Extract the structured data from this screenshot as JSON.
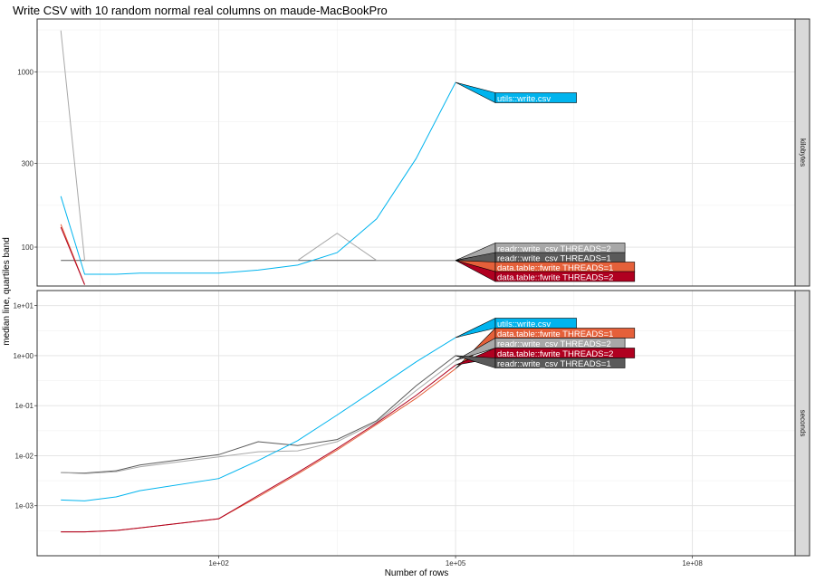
{
  "chart_data": {
    "type": "line",
    "title": "Write CSV with 10 random normal real columns on maude-MacBookPro",
    "xlabel": "Number of rows",
    "ylabel": "median line, quartiles band",
    "x_scale": "log10",
    "xlim": [
      0.5,
      2000000000
    ],
    "x_ticks": [
      {
        "value": 100,
        "label": "1e+02"
      },
      {
        "value": 100000,
        "label": "1e+05"
      },
      {
        "value": 100000000,
        "label": "1e+08"
      }
    ],
    "grid": true,
    "colors": {
      "utils::write.csv": "#00b4ee",
      "readr::write_csv THREADS=1": "#5a5a5a",
      "readr::write_csv THREADS=2": "#a8a8a8",
      "data.table::fwrite THREADS=1": "#e5603a",
      "data.table::fwrite THREADS=2": "#b00020"
    },
    "panels": [
      {
        "strip": "kilobytes",
        "y_scale": "log10",
        "ylim": [
          60,
          2000
        ],
        "y_ticks": [
          {
            "value": 100,
            "label": "100"
          },
          {
            "value": 300,
            "label": "300"
          },
          {
            "value": 1000,
            "label": "1000"
          }
        ],
        "series": [
          {
            "name": "readr::write_csv THREADS=1",
            "x": [
              1,
              2,
              5,
              10,
              100,
              316,
              1000,
              3162,
              10000,
              31623,
              100000
            ],
            "y": [
              84,
              84,
              84,
              84,
              84,
              84,
              84,
              84,
              84,
              84,
              84
            ]
          },
          {
            "name": "readr::write_csv THREADS=2",
            "x": [
              1,
              2,
              5,
              10,
              100,
              316,
              1000,
              3162,
              10000,
              31623,
              100000
            ],
            "y": [
              1720,
              84,
              84,
              84,
              84,
              84,
              84,
              120,
              84,
              84,
              84
            ]
          },
          {
            "name": "utils::write.csv",
            "x": [
              1,
              2,
              5,
              10,
              100,
              316,
              1000,
              3162,
              10000,
              31623,
              100000
            ],
            "y": [
              195,
              70,
              70,
              71,
              71,
              74,
              79,
              93,
              145,
              320,
              870
            ]
          },
          {
            "name": "data.table::fwrite THREADS=1",
            "x": [
              1,
              2
            ],
            "y": [
              135,
              61
            ]
          },
          {
            "name": "data.table::fwrite THREADS=2",
            "x": [
              1,
              2
            ],
            "y": [
              130,
              61
            ]
          }
        ],
        "labels": [
          {
            "text": "utils::write.csv",
            "series": "utils::write.csv",
            "x": 100000,
            "y": 870
          },
          {
            "text": "readr::write_csv THREADS=2",
            "series": "readr::write_csv THREADS=2",
            "x": 100000,
            "y": 84
          },
          {
            "text": "readr::write_csv THREADS=1",
            "series": "readr::write_csv THREADS=1",
            "x": 100000,
            "y": 84
          },
          {
            "text": "data.table::fwrite THREADS=1",
            "series": "data.table::fwrite THREADS=1",
            "x": 100000,
            "y": 84
          },
          {
            "text": "data.table::fwrite THREADS=2",
            "series": "data.table::fwrite THREADS=2",
            "x": 100000,
            "y": 84
          }
        ]
      },
      {
        "strip": "seconds",
        "y_scale": "log10",
        "ylim": [
          0.0001,
          20
        ],
        "y_ticks": [
          {
            "value": 0.001,
            "label": "1e-03"
          },
          {
            "value": 0.01,
            "label": "1e-02"
          },
          {
            "value": 0.1,
            "label": "1e-01"
          },
          {
            "value": 1,
            "label": "1e+00"
          },
          {
            "value": 10,
            "label": "1e+01"
          }
        ],
        "series": [
          {
            "name": "readr::write_csv THREADS=1",
            "x": [
              1,
              2,
              5,
              10,
              100,
              316,
              1000,
              3162,
              10000,
              31623,
              100000
            ],
            "y": [
              0.0046,
              0.0045,
              0.005,
              0.0065,
              0.0105,
              0.019,
              0.016,
              0.021,
              0.05,
              0.25,
              1.0
            ]
          },
          {
            "name": "readr::write_csv THREADS=2",
            "x": [
              1,
              2,
              5,
              10,
              100,
              316,
              1000,
              3162,
              10000,
              31623,
              100000
            ],
            "y": [
              0.0046,
              0.0044,
              0.0048,
              0.006,
              0.0095,
              0.012,
              0.0125,
              0.019,
              0.047,
              0.2,
              0.8
            ]
          },
          {
            "name": "utils::write.csv",
            "x": [
              1,
              2,
              5,
              10,
              100,
              316,
              1000,
              3162,
              10000,
              31623,
              100000
            ],
            "y": [
              0.0013,
              0.00125,
              0.0015,
              0.002,
              0.0035,
              0.008,
              0.02,
              0.065,
              0.22,
              0.75,
              2.3
            ]
          },
          {
            "name": "data.table::fwrite THREADS=1",
            "x": [
              1,
              2,
              5,
              10,
              100,
              316,
              1000,
              3162,
              10000,
              31623,
              100000
            ],
            "y": [
              0.0003,
              0.0003,
              0.00032,
              0.00036,
              0.00055,
              0.0015,
              0.0043,
              0.013,
              0.042,
              0.14,
              0.55
            ]
          },
          {
            "name": "data.table::fwrite THREADS=2",
            "x": [
              1,
              2,
              5,
              10,
              100,
              316,
              1000,
              3162,
              10000,
              31623,
              100000
            ],
            "y": [
              0.0003,
              0.0003,
              0.00032,
              0.00036,
              0.00055,
              0.0016,
              0.0046,
              0.014,
              0.045,
              0.16,
              0.65
            ]
          }
        ],
        "labels": [
          {
            "text": "utils::write.csv",
            "series": "utils::write.csv",
            "x": 100000,
            "y": 2.3
          },
          {
            "text": "data.table::fwrite THREADS=1",
            "series": "data.table::fwrite THREADS=1",
            "x": 100000,
            "y": 0.55
          },
          {
            "text": "readr::write_csv THREADS=2",
            "series": "readr::write_csv THREADS=2",
            "x": 100000,
            "y": 0.8
          },
          {
            "text": "data.table::fwrite THREADS=2",
            "series": "data.table::fwrite THREADS=2",
            "x": 100000,
            "y": 0.65
          },
          {
            "text": "readr::write_csv THREADS=1",
            "series": "readr::write_csv THREADS=1",
            "x": 100000,
            "y": 1.0
          }
        ]
      }
    ]
  }
}
